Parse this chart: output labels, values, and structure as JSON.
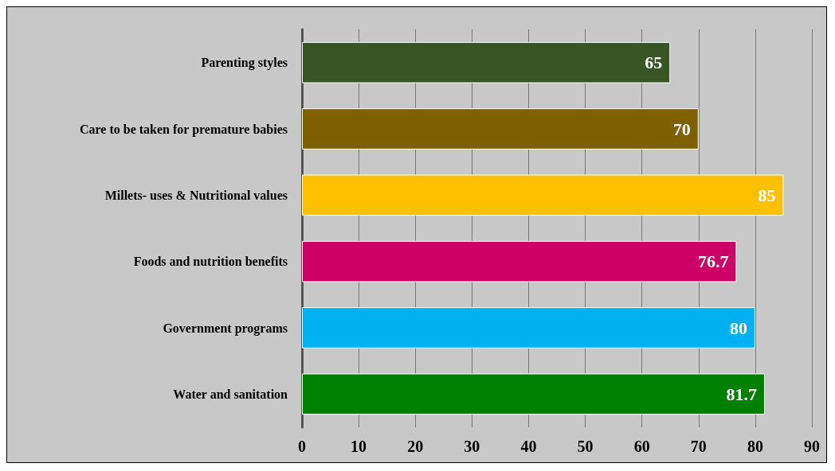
{
  "chart_data": {
    "type": "bar",
    "orientation": "horizontal",
    "categories": [
      "Parenting styles",
      "Care to be taken for premature babies",
      "Millets- uses & Nutritional values",
      "Foods and nutrition benefits",
      "Government programs",
      "Water and sanitation"
    ],
    "values": [
      65,
      70,
      85,
      76.7,
      80,
      81.7
    ],
    "colors": [
      "#375623",
      "#7f6000",
      "#ffc000",
      "#cc0066",
      "#00b0f0",
      "#008000"
    ],
    "xlim": [
      0,
      90
    ],
    "xticks": [
      0,
      10,
      20,
      30,
      40,
      50,
      60,
      70,
      80,
      90
    ],
    "grid": "x",
    "data_labels": true
  }
}
